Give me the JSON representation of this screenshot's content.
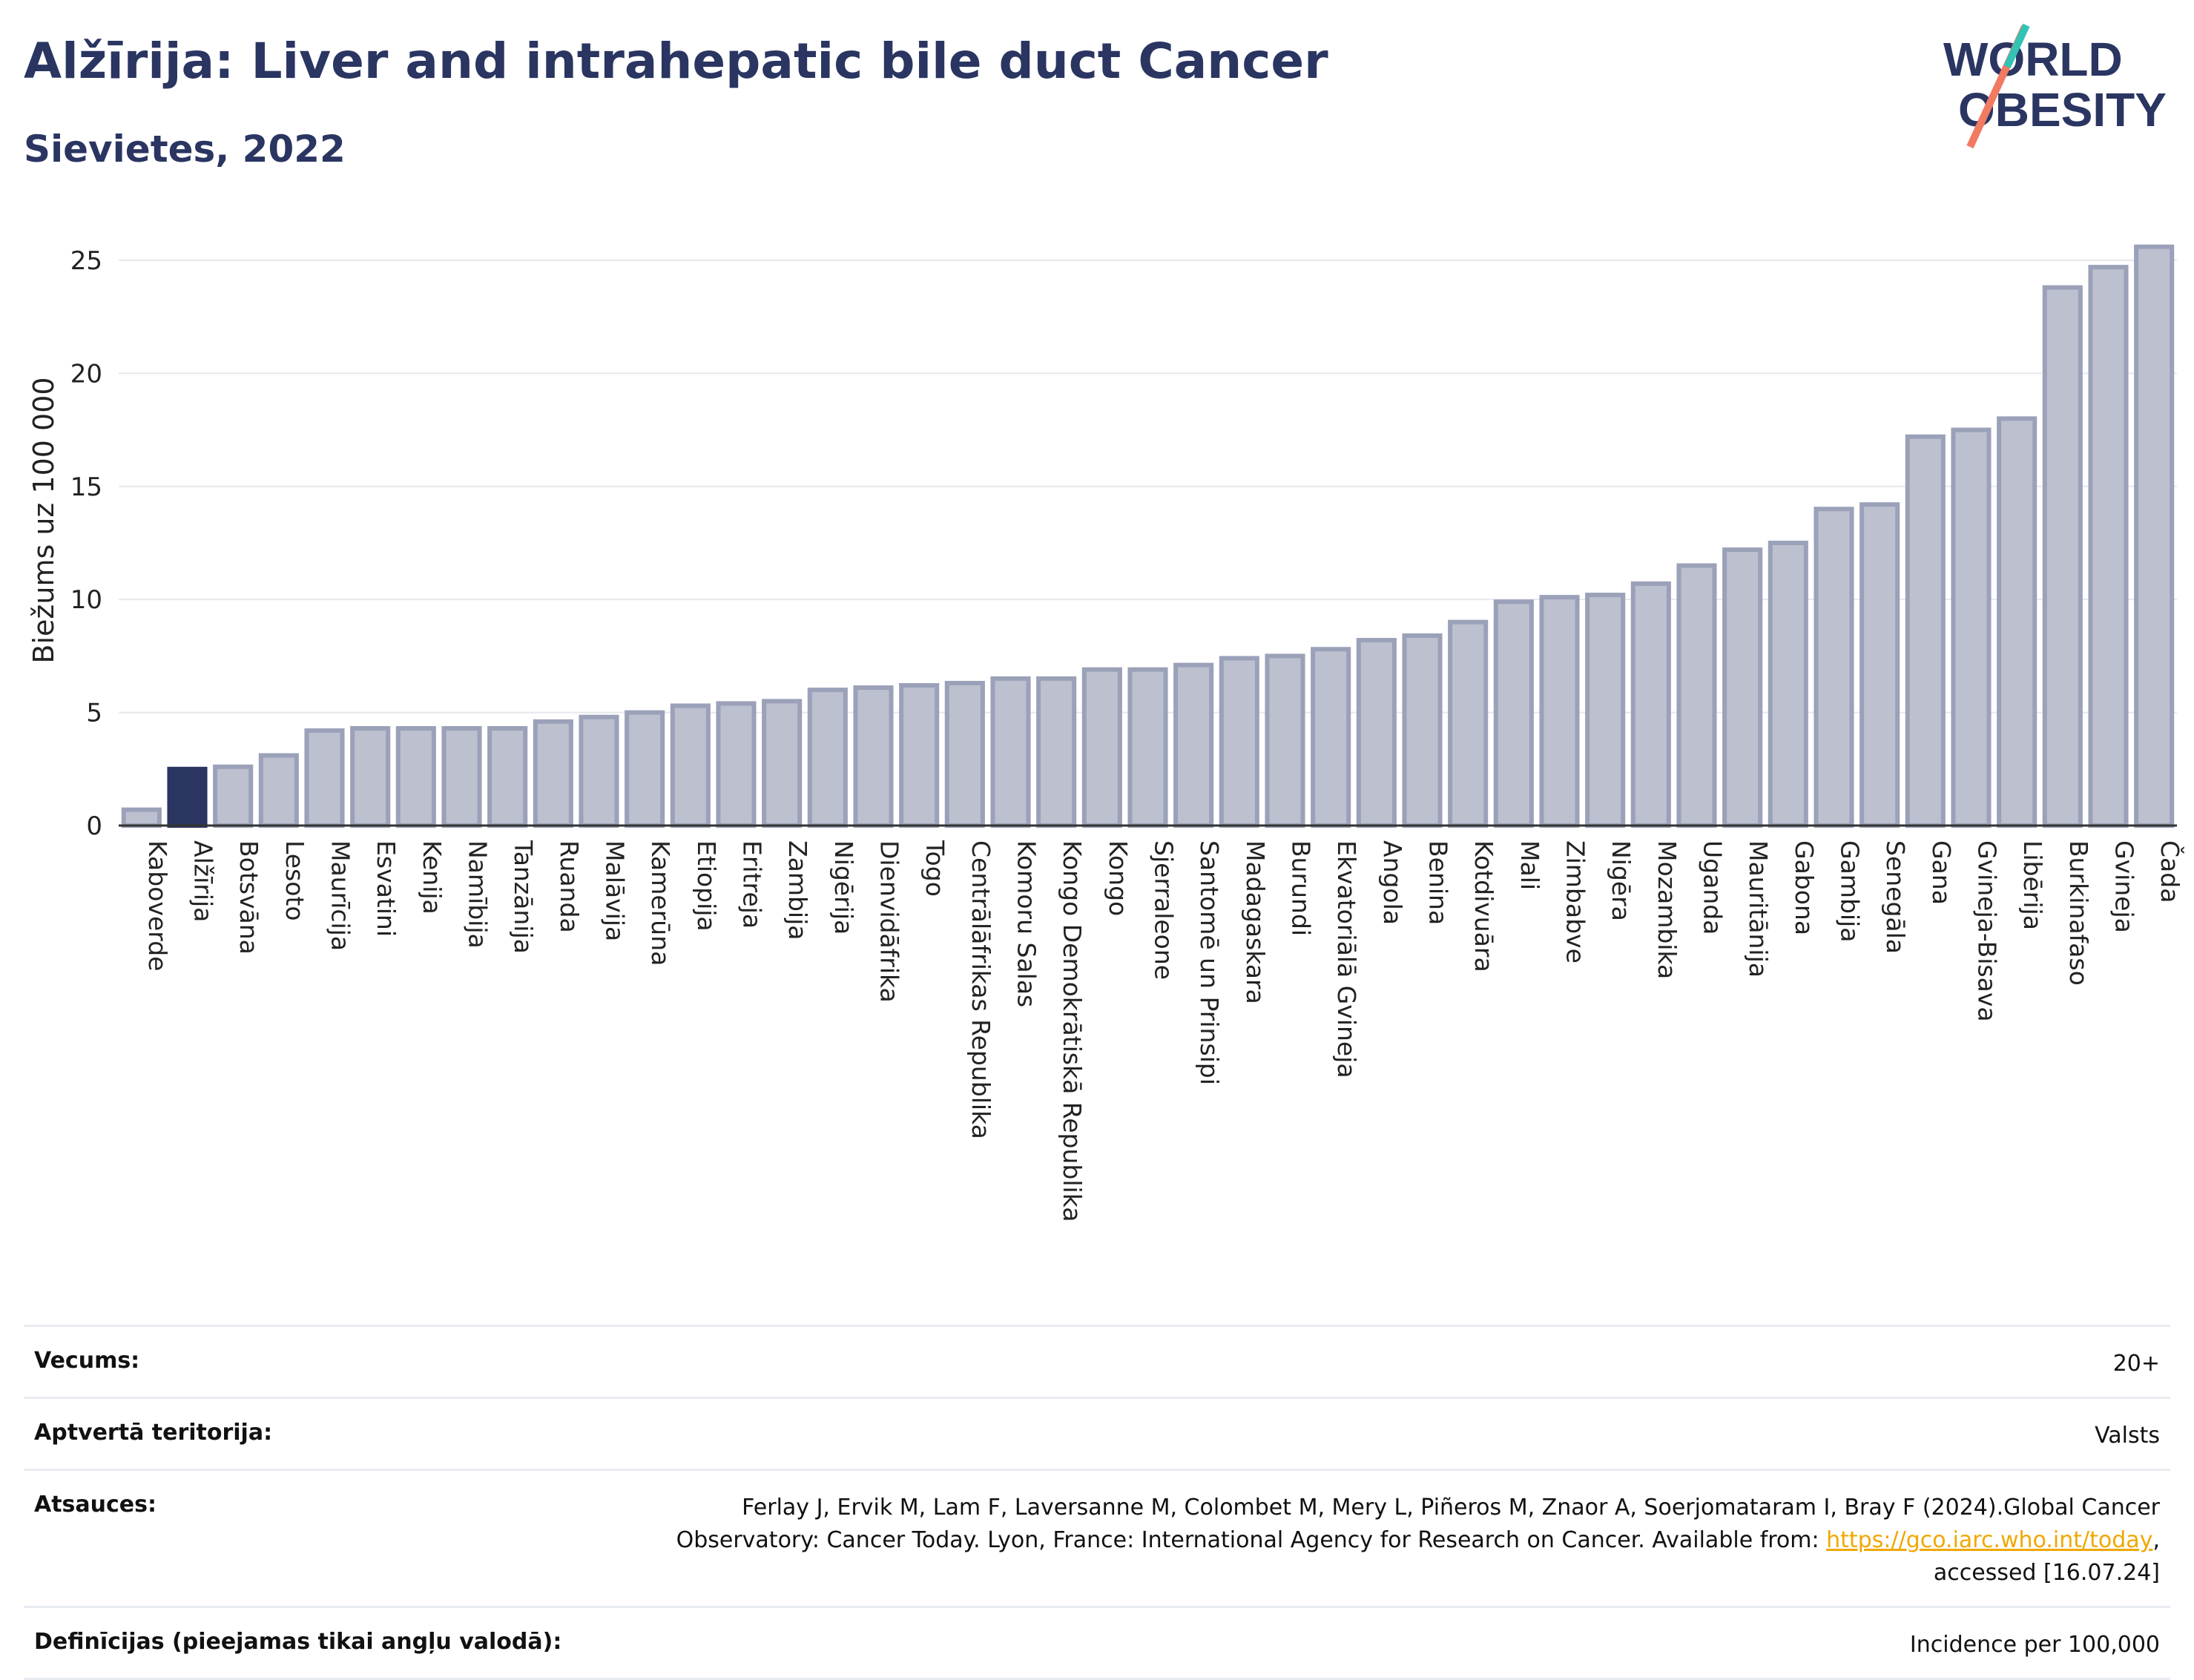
{
  "header": {
    "title": "Alžīrija: Liver and intrahepatic bile duct Cancer",
    "subtitle": "Sievietes, 2022"
  },
  "logo": {
    "line1": "WORLD",
    "line2": "OBESITY"
  },
  "colors": {
    "bar": "#bcc0cf",
    "bar_border": "#9aa1b8",
    "highlight": "#2a3561",
    "text": "#2a3561",
    "link": "#f0a800"
  },
  "chart_data": {
    "type": "bar",
    "ylabel": "Biežums uz 100 000",
    "ylim": [
      0,
      27
    ],
    "yticks": [
      0,
      5,
      10,
      15,
      20,
      25
    ],
    "grid": true,
    "highlight": "Alžīrija",
    "categories": [
      "Kaboverde",
      "Alžīrija",
      "Botsvāna",
      "Lesoto",
      "Maurīcija",
      "Esvatini",
      "Kenija",
      "Namībija",
      "Tanzānija",
      "Ruanda",
      "Malāvija",
      "Kamerūna",
      "Etiopija",
      "Eritreja",
      "Zambija",
      "Nigērija",
      "Dienvidāfrika",
      "Togo",
      "Centrālāfrikas Republika",
      "Komoru Salas",
      "Kongo Demokrātiskā Republika",
      "Kongo",
      "Sjerraleone",
      "Santomē un Prinsipi",
      "Madagaskara",
      "Burundi",
      "Ekvatoriālā Gvineja",
      "Angola",
      "Benina",
      "Kotdivuāra",
      "Mali",
      "Zimbabve",
      "Nigēra",
      "Mozambika",
      "Uganda",
      "Mauritānija",
      "Gabona",
      "Gambija",
      "Senegāla",
      "Gana",
      "Gvineja-Bisava",
      "Libērija",
      "Burkinafaso",
      "Gvineja",
      "Čada"
    ],
    "values": [
      0.7,
      2.5,
      2.6,
      3.1,
      4.2,
      4.3,
      4.3,
      4.3,
      4.3,
      4.6,
      4.8,
      5.0,
      5.3,
      5.4,
      5.5,
      6.0,
      6.1,
      6.2,
      6.3,
      6.5,
      6.5,
      6.9,
      6.9,
      7.1,
      7.4,
      7.5,
      7.8,
      8.2,
      8.4,
      9.0,
      9.9,
      10.1,
      10.2,
      10.7,
      11.5,
      12.2,
      12.5,
      14.0,
      14.2,
      17.2,
      17.5,
      18.0,
      23.8,
      24.7,
      25.6
    ]
  },
  "meta": [
    {
      "label": "Vecums:",
      "value": "20+"
    },
    {
      "label": "Aptvertā teritorija:",
      "value": "Valsts"
    },
    {
      "label": "Atsauces:",
      "value": "Ferlay J, Ervik M, Lam F, Laversanne M, Colombet M, Mery L, Piñeros M, Znaor A, Soerjomataram I, Bray F (2024).Global Cancer Observatory: Cancer Today. Lyon, France: International Agency for Research on Cancer. Available from: ",
      "link": "https://gco.iarc.who.int/today",
      "suffix": ", accessed [16.07.24]"
    },
    {
      "label": "Definīcijas (pieejamas tikai angļu valodā):",
      "value": "Incidence per 100,000"
    }
  ]
}
